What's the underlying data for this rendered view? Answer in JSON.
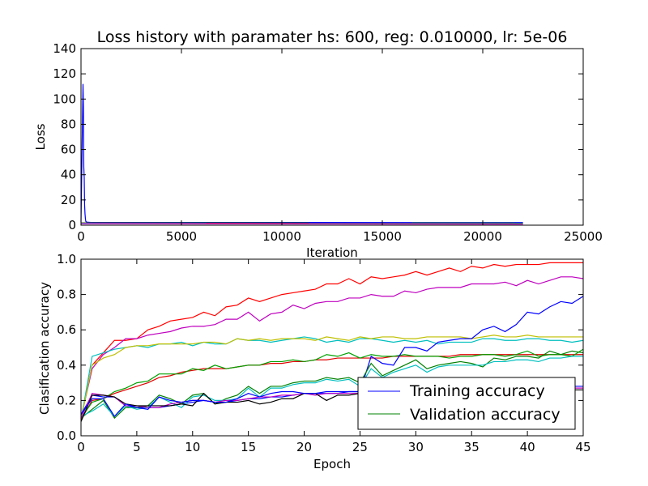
{
  "chart_data": [
    {
      "type": "line",
      "title": "Loss history with paramater hs: 600, reg: 0.010000, lr: 5e-06",
      "xlabel": "Iteration",
      "ylabel": "Loss",
      "xlim": [
        0,
        25000
      ],
      "ylim": [
        0,
        140
      ],
      "xticks": [
        0,
        5000,
        10000,
        15000,
        20000,
        25000
      ],
      "yticks": [
        0,
        20,
        40,
        60,
        80,
        100,
        120,
        140
      ],
      "grid": false,
      "series": [
        {
          "color": "#0000ff",
          "x": [
            0,
            100,
            120,
            140,
            160,
            180,
            200,
            220,
            240,
            300,
            500,
            22000
          ],
          "y": [
            2.3,
            112,
            94,
            46,
            38,
            16,
            9,
            5,
            3,
            2.4,
            2.2,
            2.1
          ]
        },
        {
          "color": "#008000",
          "x": [
            0,
            22000
          ],
          "y": [
            1.9,
            1.7
          ]
        },
        {
          "color": "#ff0000",
          "x": [
            0,
            22000
          ],
          "y": [
            1.6,
            1.3
          ]
        },
        {
          "color": "#00bfbf",
          "x": [
            0,
            22000
          ],
          "y": [
            1.5,
            1.2
          ]
        },
        {
          "color": "#bf00bf",
          "x": [
            0,
            22000
          ],
          "y": [
            1.2,
            0.9
          ]
        }
      ]
    },
    {
      "type": "line",
      "title": "",
      "xlabel": "Epoch",
      "ylabel": "Clasification accuracy",
      "xlim": [
        0,
        45
      ],
      "ylim": [
        0,
        1
      ],
      "xticks": [
        0,
        5,
        10,
        15,
        20,
        25,
        30,
        35,
        40,
        45
      ],
      "yticks": [
        0.0,
        0.2,
        0.4,
        0.6,
        0.8,
        1.0
      ],
      "yticklabels": [
        "0.0",
        "0.2",
        "0.4",
        "0.6",
        "0.8",
        "1.0"
      ],
      "grid": false,
      "legend": {
        "placement": "bottom-right",
        "entries": [
          {
            "label": "Training accuracy",
            "color": "#0000ff"
          },
          {
            "label": "Validation accuracy",
            "color": "#008000"
          }
        ]
      },
      "x": [
        0,
        1,
        2,
        3,
        4,
        5,
        6,
        7,
        8,
        9,
        10,
        11,
        12,
        13,
        14,
        15,
        16,
        17,
        18,
        19,
        20,
        21,
        22,
        23,
        24,
        25,
        26,
        27,
        28,
        29,
        30,
        31,
        32,
        33,
        34,
        35,
        36,
        37,
        38,
        39,
        40,
        41,
        42,
        43,
        44,
        45
      ],
      "series": [
        {
          "color": "#ff0000",
          "values": [
            0.1,
            0.4,
            0.47,
            0.54,
            0.54,
            0.55,
            0.6,
            0.62,
            0.65,
            0.66,
            0.67,
            0.7,
            0.68,
            0.73,
            0.74,
            0.78,
            0.76,
            0.78,
            0.8,
            0.81,
            0.82,
            0.83,
            0.86,
            0.86,
            0.89,
            0.86,
            0.9,
            0.89,
            0.9,
            0.91,
            0.93,
            0.91,
            0.93,
            0.95,
            0.93,
            0.96,
            0.95,
            0.97,
            0.96,
            0.97,
            0.97,
            0.97,
            0.98,
            0.98,
            0.98,
            0.98
          ]
        },
        {
          "color": "#bf00bf",
          "values": [
            0.1,
            0.38,
            0.46,
            0.5,
            0.55,
            0.55,
            0.57,
            0.58,
            0.59,
            0.61,
            0.62,
            0.62,
            0.63,
            0.66,
            0.66,
            0.7,
            0.65,
            0.69,
            0.7,
            0.74,
            0.72,
            0.75,
            0.76,
            0.76,
            0.78,
            0.78,
            0.8,
            0.79,
            0.79,
            0.82,
            0.81,
            0.83,
            0.84,
            0.84,
            0.84,
            0.86,
            0.86,
            0.86,
            0.87,
            0.85,
            0.88,
            0.86,
            0.88,
            0.9,
            0.9,
            0.89
          ]
        },
        {
          "color": "#00bfbf",
          "values": [
            0.09,
            0.45,
            0.47,
            0.49,
            0.5,
            0.51,
            0.5,
            0.52,
            0.52,
            0.53,
            0.51,
            0.53,
            0.52,
            0.52,
            0.55,
            0.54,
            0.54,
            0.53,
            0.54,
            0.55,
            0.56,
            0.55,
            0.53,
            0.54,
            0.53,
            0.55,
            0.55,
            0.54,
            0.53,
            0.54,
            0.53,
            0.54,
            0.52,
            0.53,
            0.53,
            0.53,
            0.55,
            0.55,
            0.54,
            0.54,
            0.55,
            0.55,
            0.54,
            0.54,
            0.53,
            0.54
          ]
        },
        {
          "color": "#bfbf00",
          "values": [
            0.09,
            0.4,
            0.44,
            0.46,
            0.5,
            0.51,
            0.51,
            0.52,
            0.52,
            0.52,
            0.52,
            0.53,
            0.53,
            0.52,
            0.55,
            0.54,
            0.55,
            0.54,
            0.55,
            0.55,
            0.55,
            0.54,
            0.56,
            0.55,
            0.54,
            0.56,
            0.55,
            0.56,
            0.56,
            0.55,
            0.55,
            0.56,
            0.56,
            0.56,
            0.56,
            0.55,
            0.56,
            0.57,
            0.56,
            0.56,
            0.57,
            0.56,
            0.56,
            0.56,
            0.56,
            0.56
          ]
        },
        {
          "color": "#e00000",
          "values": [
            0.09,
            0.2,
            0.21,
            0.24,
            0.26,
            0.28,
            0.3,
            0.33,
            0.34,
            0.36,
            0.37,
            0.38,
            0.38,
            0.38,
            0.39,
            0.4,
            0.4,
            0.41,
            0.41,
            0.42,
            0.42,
            0.43,
            0.43,
            0.44,
            0.44,
            0.44,
            0.44,
            0.44,
            0.45,
            0.45,
            0.45,
            0.45,
            0.45,
            0.45,
            0.46,
            0.46,
            0.46,
            0.46,
            0.46,
            0.46,
            0.46,
            0.46,
            0.46,
            0.46,
            0.46,
            0.46
          ]
        },
        {
          "color": "#00a000",
          "values": [
            0.1,
            0.19,
            0.21,
            0.25,
            0.27,
            0.3,
            0.31,
            0.35,
            0.35,
            0.35,
            0.38,
            0.37,
            0.4,
            0.38,
            0.39,
            0.4,
            0.4,
            0.42,
            0.42,
            0.43,
            0.42,
            0.43,
            0.46,
            0.45,
            0.47,
            0.44,
            0.46,
            0.45,
            0.45,
            0.46,
            0.45,
            0.45,
            0.45,
            0.44,
            0.45,
            0.45,
            0.46,
            0.46,
            0.45,
            0.46,
            0.48,
            0.45,
            0.46,
            0.46,
            0.45,
            0.49
          ]
        },
        {
          "color": "#0000ff",
          "values": [
            0.12,
            0.23,
            0.22,
            0.22,
            0.17,
            0.16,
            0.16,
            0.16,
            0.17,
            0.18,
            0.19,
            0.2,
            0.19,
            0.19,
            0.2,
            0.21,
            0.21,
            0.22,
            0.22,
            0.23,
            0.24,
            0.24,
            0.24,
            0.24,
            0.25,
            0.25,
            0.45,
            0.41,
            0.4,
            0.5,
            0.5,
            0.48,
            0.53,
            0.54,
            0.55,
            0.55,
            0.6,
            0.62,
            0.59,
            0.63,
            0.7,
            0.69,
            0.73,
            0.76,
            0.75,
            0.79
          ]
        },
        {
          "color": "#008000",
          "values": [
            0.1,
            0.15,
            0.2,
            0.1,
            0.16,
            0.16,
            0.17,
            0.23,
            0.21,
            0.18,
            0.23,
            0.24,
            0.18,
            0.21,
            0.23,
            0.28,
            0.24,
            0.28,
            0.28,
            0.3,
            0.31,
            0.31,
            0.33,
            0.32,
            0.33,
            0.3,
            0.41,
            0.34,
            0.37,
            0.4,
            0.43,
            0.38,
            0.4,
            0.41,
            0.42,
            0.41,
            0.39,
            0.44,
            0.43,
            0.45,
            0.45,
            0.44,
            0.48,
            0.46,
            0.48,
            0.47
          ]
        },
        {
          "color": "#00bfbf",
          "values": [
            0.11,
            0.14,
            0.18,
            0.11,
            0.17,
            0.15,
            0.16,
            0.22,
            0.19,
            0.16,
            0.22,
            0.23,
            0.2,
            0.2,
            0.21,
            0.27,
            0.22,
            0.27,
            0.27,
            0.29,
            0.3,
            0.3,
            0.32,
            0.31,
            0.32,
            0.28,
            0.38,
            0.33,
            0.36,
            0.38,
            0.4,
            0.36,
            0.39,
            0.4,
            0.4,
            0.4,
            0.4,
            0.42,
            0.42,
            0.43,
            0.43,
            0.42,
            0.44,
            0.44,
            0.45,
            0.45
          ]
        },
        {
          "color": "#bf00bf",
          "values": [
            0.1,
            0.24,
            0.23,
            0.22,
            0.17,
            0.17,
            0.16,
            0.16,
            0.18,
            0.19,
            0.2,
            0.2,
            0.19,
            0.2,
            0.2,
            0.21,
            0.22,
            0.22,
            0.23,
            0.23,
            0.24,
            0.23,
            0.24,
            0.24,
            0.24,
            0.24,
            0.25,
            0.25,
            0.25,
            0.25,
            0.25,
            0.25,
            0.25,
            0.25,
            0.25,
            0.25,
            0.26,
            0.26,
            0.26,
            0.26,
            0.26,
            0.26,
            0.26,
            0.27,
            0.27,
            0.27
          ]
        },
        {
          "color": "#000000",
          "values": [
            0.08,
            0.23,
            0.23,
            0.22,
            0.18,
            0.17,
            0.17,
            0.17,
            0.17,
            0.18,
            0.17,
            0.24,
            0.18,
            0.19,
            0.19,
            0.2,
            0.18,
            0.19,
            0.21,
            0.21,
            0.24,
            0.24,
            0.2,
            0.23,
            0.23,
            0.24,
            0.23,
            0.24,
            0.24,
            0.24,
            0.24,
            0.24,
            0.25,
            0.24,
            0.25,
            0.25,
            0.25,
            0.25,
            0.25,
            0.25,
            0.25,
            0.26,
            0.26,
            0.26,
            0.26,
            0.26
          ]
        },
        {
          "color": "#0000ff",
          "values": [
            0.12,
            0.21,
            0.21,
            0.11,
            0.18,
            0.16,
            0.15,
            0.22,
            0.2,
            0.19,
            0.2,
            0.2,
            0.19,
            0.19,
            0.21,
            0.24,
            0.22,
            0.24,
            0.25,
            0.25,
            0.24,
            0.24,
            0.25,
            0.25,
            0.25,
            0.25,
            0.26,
            0.26,
            0.26,
            0.26,
            0.27,
            0.27,
            0.27,
            0.27,
            0.27,
            0.27,
            0.28,
            0.28,
            0.28,
            0.28,
            0.28,
            0.28,
            0.28,
            0.28,
            0.28,
            0.28
          ]
        }
      ]
    }
  ]
}
